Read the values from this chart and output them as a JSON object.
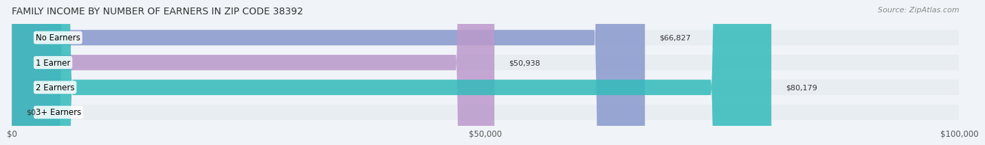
{
  "title": "FAMILY INCOME BY NUMBER OF EARNERS IN ZIP CODE 38392",
  "source": "Source: ZipAtlas.com",
  "categories": [
    "No Earners",
    "1 Earner",
    "2 Earners",
    "3+ Earners"
  ],
  "values": [
    66827,
    50938,
    80179,
    0
  ],
  "bar_colors": [
    "#8899cc",
    "#bb99cc",
    "#33bbbb",
    "#aabbdd"
  ],
  "label_colors": [
    "#ffffff",
    "#555555",
    "#ffffff",
    "#555555"
  ],
  "xlim": [
    0,
    100000
  ],
  "xticks": [
    0,
    50000,
    100000
  ],
  "xtick_labels": [
    "$0",
    "$50,000",
    "$100,000"
  ],
  "value_labels": [
    "$66,827",
    "$50,938",
    "$80,179",
    "$0"
  ],
  "background_color": "#f0f4f8",
  "bar_bg_color": "#e8edf2",
  "title_fontsize": 10,
  "source_fontsize": 8
}
